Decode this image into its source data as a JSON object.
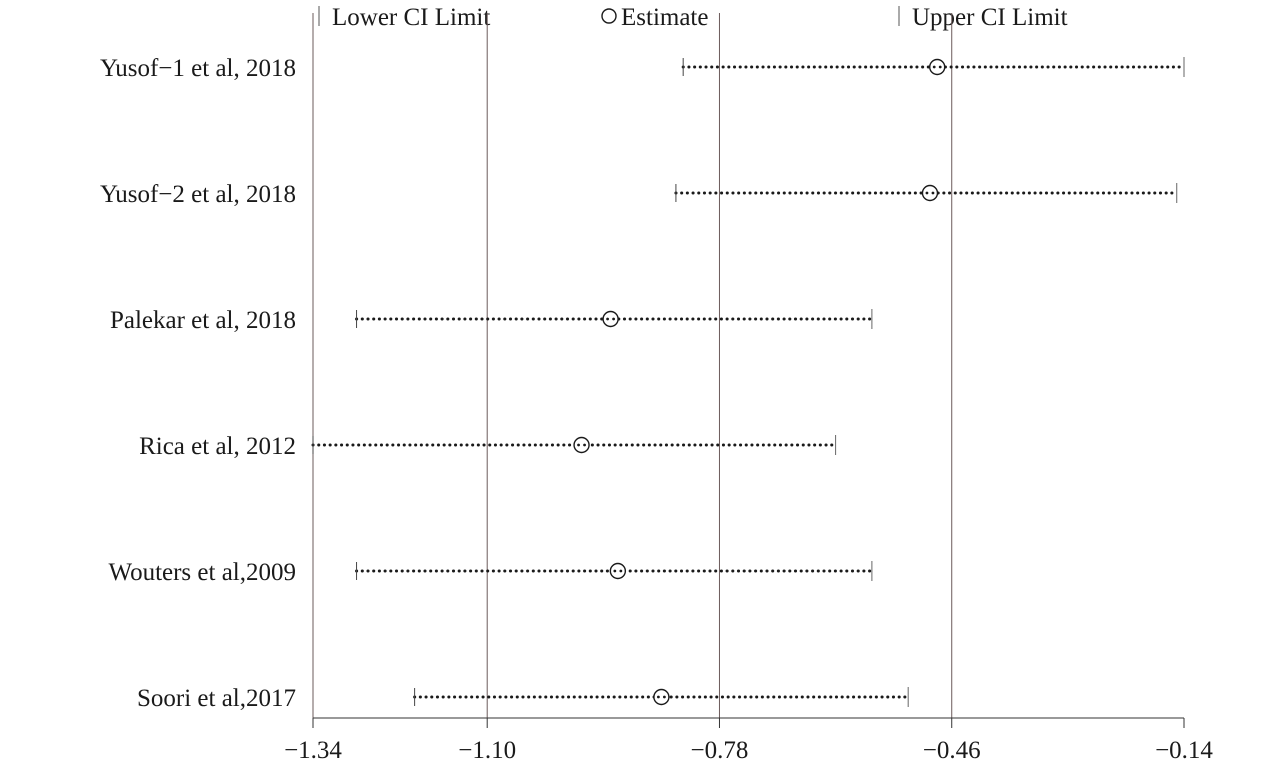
{
  "chart_data": {
    "type": "scatter",
    "subtype": "sensitivity-forest-plot",
    "title": "",
    "xlabel": "",
    "ylabel": "",
    "xlim": [
      -1.34,
      -0.14
    ],
    "x_ticks": [
      -1.34,
      -1.1,
      -0.78,
      -0.46,
      -0.14
    ],
    "x_tick_labels": [
      "−1.34",
      "−1.10",
      "−0.78",
      "−0.46",
      "−0.14"
    ],
    "reference_lines": [
      -1.1,
      -0.78,
      -0.46
    ],
    "legend": {
      "placement": "top",
      "entries": [
        {
          "symbol": "|",
          "label": "Lower CI Limit"
        },
        {
          "symbol": "○",
          "label": "Estimate"
        },
        {
          "symbol": "|",
          "label": "Upper CI Limit"
        }
      ]
    },
    "studies": [
      {
        "label": "Yusof−1 et al, 2018",
        "lower": -0.83,
        "estimate": -0.48,
        "upper": -0.14
      },
      {
        "label": "Yusof−2 et al, 2018",
        "lower": -0.84,
        "estimate": -0.49,
        "upper": -0.15
      },
      {
        "label": "Palekar et al, 2018",
        "lower": -1.28,
        "estimate": -0.93,
        "upper": -0.57
      },
      {
        "label": "Rica et al, 2012",
        "lower": -1.34,
        "estimate": -0.97,
        "upper": -0.62
      },
      {
        "label": "Wouters et al,2009",
        "lower": -1.28,
        "estimate": -0.92,
        "upper": -0.57
      },
      {
        "label": "Soori et al,2017",
        "lower": -1.2,
        "estimate": -0.86,
        "upper": -0.52
      }
    ],
    "colors": {
      "axis": "#333333",
      "reference": "#6b5b5b",
      "marker": "#1a1a1a"
    }
  }
}
